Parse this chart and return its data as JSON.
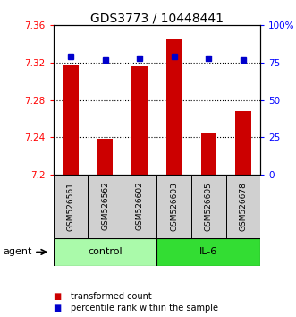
{
  "title": "GDS3773 / 10448441",
  "samples": [
    "GSM526561",
    "GSM526562",
    "GSM526602",
    "GSM526603",
    "GSM526605",
    "GSM526678"
  ],
  "red_values": [
    7.317,
    7.238,
    7.316,
    7.345,
    7.245,
    7.268
  ],
  "blue_values": [
    79,
    77,
    78,
    79,
    78,
    77
  ],
  "ylim_left": [
    7.2,
    7.36
  ],
  "ylim_right": [
    0,
    100
  ],
  "yticks_left": [
    7.2,
    7.24,
    7.28,
    7.32,
    7.36
  ],
  "yticks_right": [
    0,
    25,
    50,
    75,
    100
  ],
  "ytick_labels_left": [
    "7.2",
    "7.24",
    "7.28",
    "7.32",
    "7.36"
  ],
  "ytick_labels_right": [
    "0",
    "25",
    "50",
    "75",
    "100%"
  ],
  "hlines": [
    7.24,
    7.28,
    7.32
  ],
  "group_control_color": "#AAFAAA",
  "group_il6_color": "#33DD33",
  "agent_label": "agent",
  "bar_color": "#CC0000",
  "dot_color": "#0000CC",
  "bar_width": 0.45,
  "title_fontsize": 10,
  "tick_fontsize": 7.5,
  "sample_fontsize": 6.5,
  "legend_fontsize": 7,
  "agent_fontsize": 8
}
